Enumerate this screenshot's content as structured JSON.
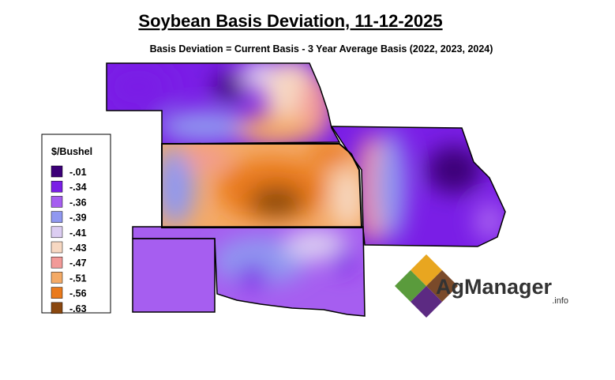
{
  "header": {
    "title": "Soybean Basis Deviation, 11-12-2025",
    "subtitle": "Basis Deviation = Current Basis - 3 Year Average Basis (2022, 2023, 2024)"
  },
  "legend": {
    "title": "$/Bushel",
    "items": [
      {
        "label": "-.01",
        "color": "#3c0078"
      },
      {
        "label": "-.34",
        "color": "#7a1ee6"
      },
      {
        "label": "-.36",
        "color": "#a65ef0"
      },
      {
        "label": "-.39",
        "color": "#9098f0"
      },
      {
        "label": "-.41",
        "color": "#dccdf2"
      },
      {
        "label": "-.43",
        "color": "#f7d8c2"
      },
      {
        "label": "-.47",
        "color": "#f29a98"
      },
      {
        "label": "-.51",
        "color": "#f4aa66"
      },
      {
        "label": "-.56",
        "color": "#ea7a1c"
      },
      {
        "label": "-.63",
        "color": "#8a4810"
      }
    ]
  },
  "logo": {
    "name": "AgManager",
    "suffix": ".info"
  }
}
